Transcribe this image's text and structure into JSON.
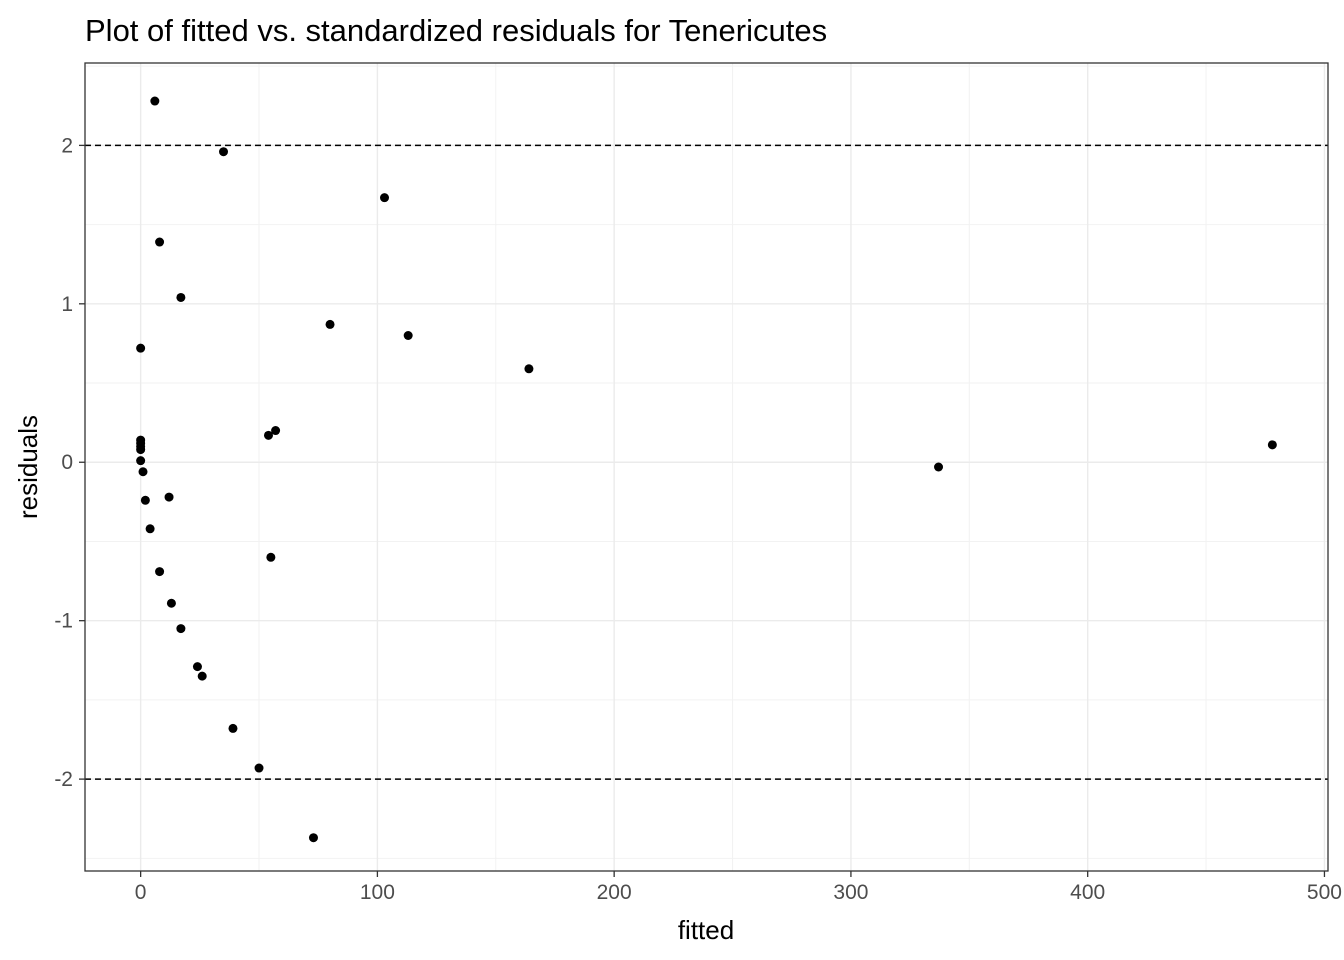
{
  "chart_data": {
    "type": "scatter",
    "title": "Plot of fitted vs. standardized residuals for Tenericutes",
    "xlabel": "fitted",
    "ylabel": "residuals",
    "xlim": [
      -23.5,
      501.5
    ],
    "ylim": [
      -2.58,
      2.52
    ],
    "x_ticks": [
      0,
      100,
      200,
      300,
      400,
      500
    ],
    "y_ticks": [
      -2,
      -1,
      0,
      1,
      2
    ],
    "x_tick_labels": [
      "0",
      "100",
      "200",
      "300",
      "400",
      "500"
    ],
    "y_tick_labels": [
      "-2",
      "-1",
      "0",
      "1",
      "2"
    ],
    "reference_lines_y": [
      2,
      -2
    ],
    "grid": true,
    "legend": "none",
    "point_color": "#000000",
    "points": [
      {
        "x": 6,
        "y": 2.28
      },
      {
        "x": 35,
        "y": 1.96
      },
      {
        "x": 103,
        "y": 1.67
      },
      {
        "x": 8,
        "y": 1.39
      },
      {
        "x": 17,
        "y": 1.04
      },
      {
        "x": 80,
        "y": 0.87
      },
      {
        "x": 113,
        "y": 0.8
      },
      {
        "x": 0,
        "y": 0.72
      },
      {
        "x": 164,
        "y": 0.59
      },
      {
        "x": 57,
        "y": 0.2
      },
      {
        "x": 54,
        "y": 0.17
      },
      {
        "x": 0,
        "y": 0.14
      },
      {
        "x": 0,
        "y": 0.12
      },
      {
        "x": 0,
        "y": 0.1
      },
      {
        "x": 0,
        "y": 0.08
      },
      {
        "x": 478,
        "y": 0.11
      },
      {
        "x": 0,
        "y": 0.01
      },
      {
        "x": 337,
        "y": -0.03
      },
      {
        "x": 1,
        "y": -0.06
      },
      {
        "x": 12,
        "y": -0.22
      },
      {
        "x": 2,
        "y": -0.24
      },
      {
        "x": 4,
        "y": -0.42
      },
      {
        "x": 55,
        "y": -0.6
      },
      {
        "x": 8,
        "y": -0.69
      },
      {
        "x": 13,
        "y": -0.89
      },
      {
        "x": 17,
        "y": -1.05
      },
      {
        "x": 24,
        "y": -1.29
      },
      {
        "x": 26,
        "y": -1.35
      },
      {
        "x": 39,
        "y": -1.68
      },
      {
        "x": 50,
        "y": -1.93
      },
      {
        "x": 73,
        "y": -2.37
      }
    ]
  }
}
